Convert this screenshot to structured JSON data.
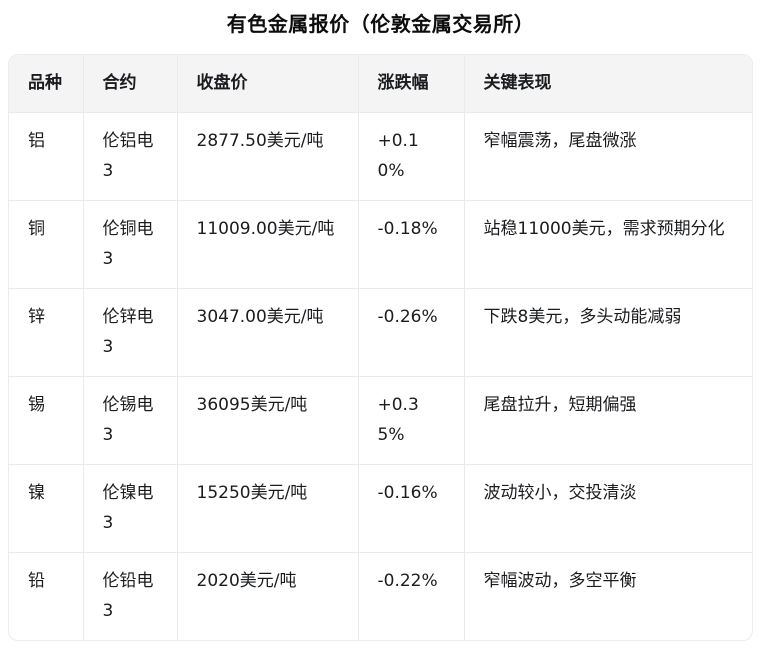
{
  "title": "有色金属报价（伦敦金属交易所）",
  "table": {
    "columns": [
      "品种",
      "合约",
      "收盘价",
      "涨跌幅",
      "关键表现"
    ],
    "rows": [
      {
        "variety": "铝",
        "contract": "伦铝电3",
        "close": "2877.50美元/吨",
        "change": "+0.10%",
        "performance": "窄幅震荡，尾盘微涨"
      },
      {
        "variety": "铜",
        "contract": "伦铜电3",
        "close": "11009.00美元/吨",
        "change": "-0.18%",
        "performance": "站稳11000美元，需求预期分化"
      },
      {
        "variety": "锌",
        "contract": "伦锌电3",
        "close": "3047.00美元/吨",
        "change": "-0.26%",
        "performance": "下跌8美元，多头动能减弱"
      },
      {
        "variety": "锡",
        "contract": "伦锡电3",
        "close": "36095美元/吨",
        "change": "+0.35%",
        "performance": "尾盘拉升，短期偏强"
      },
      {
        "variety": "镍",
        "contract": "伦镍电3",
        "close": "15250美元/吨",
        "change": "-0.16%",
        "performance": "波动较小，交投清淡"
      },
      {
        "variety": "铅",
        "contract": "伦铅电3",
        "close": "2020美元/吨",
        "change": "-0.22%",
        "performance": "窄幅波动，多空平衡"
      }
    ]
  },
  "colors": {
    "header_background": "#f4f4f5",
    "grid_line": "#e9eaeb",
    "text": "#1b1c1f",
    "page_background": "#ffffff"
  }
}
